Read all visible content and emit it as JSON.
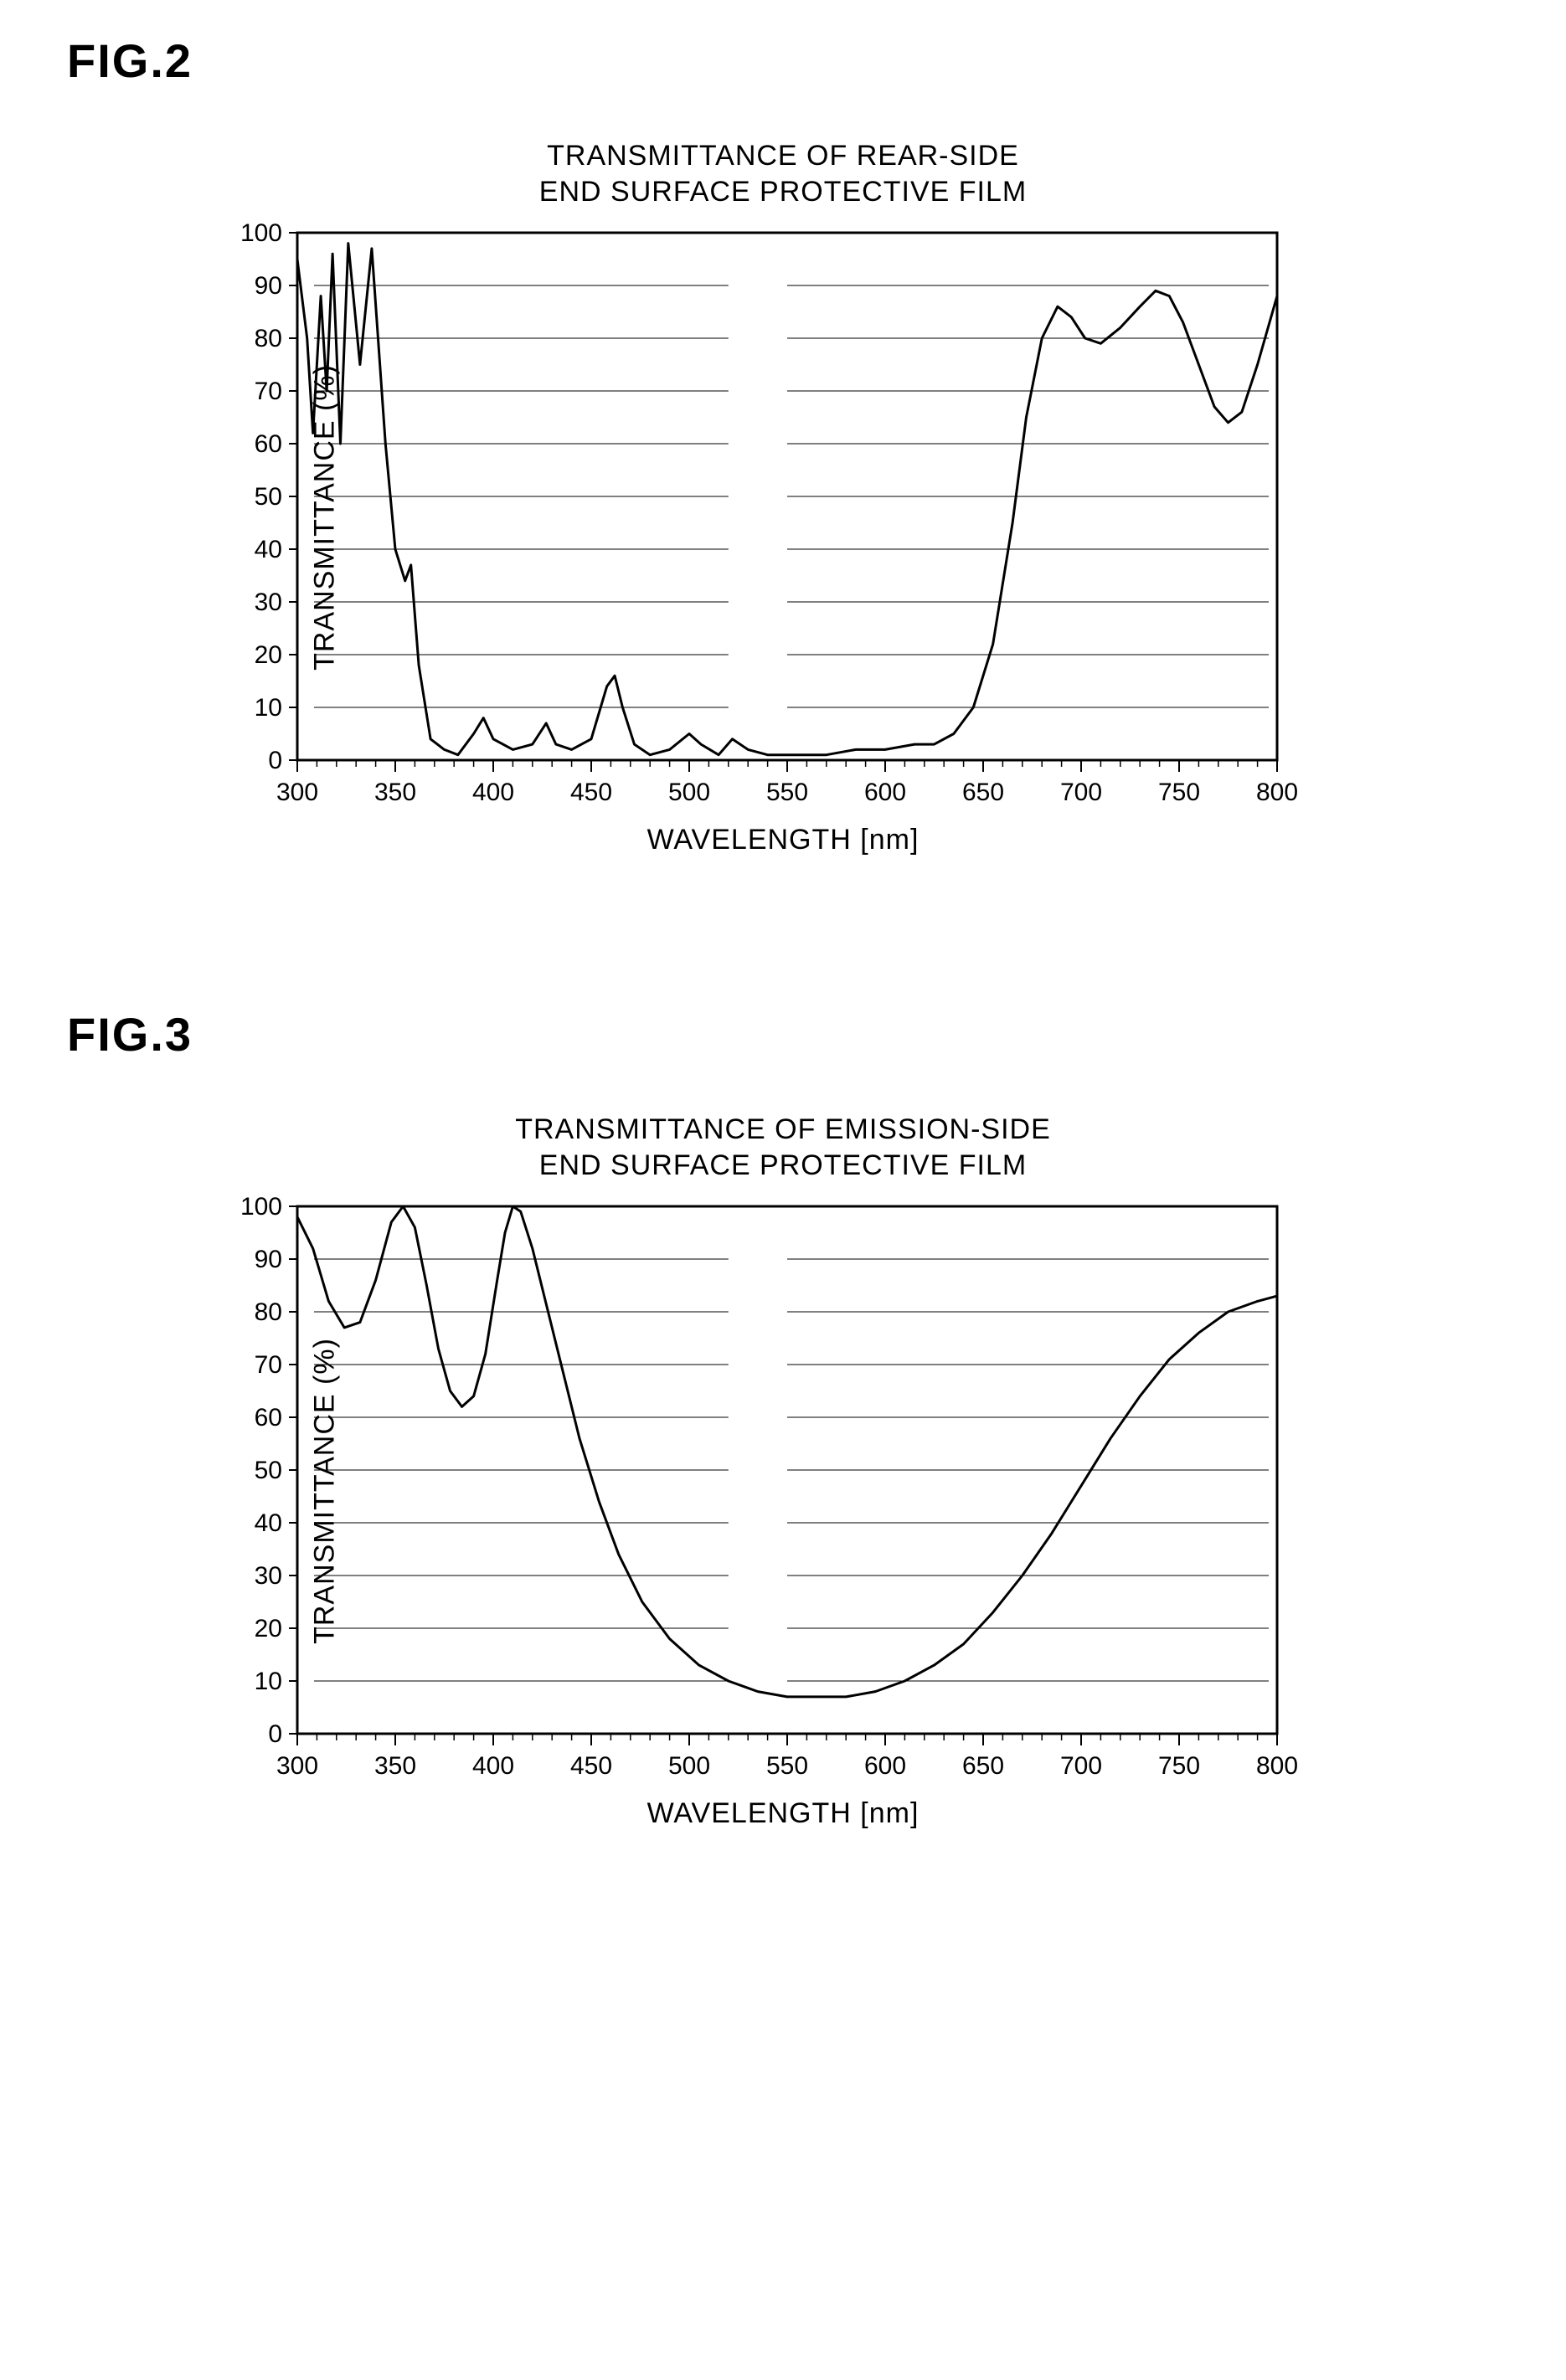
{
  "fig2": {
    "label": "FIG.2",
    "chart": {
      "type": "line",
      "title_line1": "TRANSMITTANCE OF REAR-SIDE",
      "title_line2": "END SURFACE PROTECTIVE FILM",
      "xlabel": "WAVELENGTH  [nm]",
      "ylabel": "TRANSMITTANCE (%)",
      "xlim": [
        300,
        800
      ],
      "ylim": [
        0,
        100
      ],
      "xtick_step": 50,
      "ytick_step": 10,
      "xtick_minor": 10,
      "xtick_labels": [
        "300",
        "350",
        "400",
        "450",
        "500",
        "550",
        "600",
        "650",
        "700",
        "750",
        "800"
      ],
      "ytick_labels": [
        "0",
        "10",
        "20",
        "30",
        "40",
        "50",
        "60",
        "70",
        "80",
        "90",
        "100"
      ],
      "line_color": "#000000",
      "line_width": 3,
      "grid_color": "#000000",
      "grid_width": 1,
      "axis_color": "#000000",
      "axis_width": 3,
      "background_color": "#ffffff",
      "tick_font_size": 30,
      "label_font_size": 34,
      "title_font_size": 34,
      "series": [
        [
          300,
          95
        ],
        [
          305,
          80
        ],
        [
          308,
          62
        ],
        [
          312,
          88
        ],
        [
          315,
          70
        ],
        [
          318,
          96
        ],
        [
          322,
          60
        ],
        [
          326,
          98
        ],
        [
          332,
          75
        ],
        [
          338,
          97
        ],
        [
          345,
          60
        ],
        [
          350,
          40
        ],
        [
          355,
          34
        ],
        [
          358,
          37
        ],
        [
          362,
          18
        ],
        [
          368,
          4
        ],
        [
          375,
          2
        ],
        [
          382,
          1
        ],
        [
          390,
          5
        ],
        [
          395,
          8
        ],
        [
          400,
          4
        ],
        [
          410,
          2
        ],
        [
          420,
          3
        ],
        [
          427,
          7
        ],
        [
          432,
          3
        ],
        [
          440,
          2
        ],
        [
          450,
          4
        ],
        [
          458,
          14
        ],
        [
          462,
          16
        ],
        [
          466,
          10
        ],
        [
          472,
          3
        ],
        [
          480,
          1
        ],
        [
          490,
          2
        ],
        [
          500,
          5
        ],
        [
          506,
          3
        ],
        [
          515,
          1
        ],
        [
          522,
          4
        ],
        [
          530,
          2
        ],
        [
          540,
          1
        ],
        [
          555,
          1
        ],
        [
          570,
          1
        ],
        [
          585,
          2
        ],
        [
          600,
          2
        ],
        [
          615,
          3
        ],
        [
          625,
          3
        ],
        [
          635,
          5
        ],
        [
          645,
          10
        ],
        [
          655,
          22
        ],
        [
          665,
          45
        ],
        [
          672,
          65
        ],
        [
          680,
          80
        ],
        [
          688,
          86
        ],
        [
          695,
          84
        ],
        [
          702,
          80
        ],
        [
          710,
          79
        ],
        [
          720,
          82
        ],
        [
          730,
          86
        ],
        [
          738,
          89
        ],
        [
          745,
          88
        ],
        [
          752,
          83
        ],
        [
          760,
          75
        ],
        [
          768,
          67
        ],
        [
          775,
          64
        ],
        [
          782,
          66
        ],
        [
          790,
          75
        ],
        [
          800,
          88
        ]
      ]
    }
  },
  "fig3": {
    "label": "FIG.3",
    "chart": {
      "type": "line",
      "title_line1": "TRANSMITTANCE OF EMISSION-SIDE",
      "title_line2": "END SURFACE PROTECTIVE FILM",
      "xlabel": "WAVELENGTH  [nm]",
      "ylabel": "TRANSMITTANCE (%)",
      "xlim": [
        300,
        800
      ],
      "ylim": [
        0,
        100
      ],
      "xtick_step": 50,
      "ytick_step": 10,
      "xtick_minor": 10,
      "xtick_labels": [
        "300",
        "350",
        "400",
        "450",
        "500",
        "550",
        "600",
        "650",
        "700",
        "750",
        "800"
      ],
      "ytick_labels": [
        "0",
        "10",
        "20",
        "30",
        "40",
        "50",
        "60",
        "70",
        "80",
        "90",
        "100"
      ],
      "line_color": "#000000",
      "line_width": 3,
      "grid_color": "#000000",
      "grid_width": 1,
      "axis_color": "#000000",
      "axis_width": 3,
      "background_color": "#ffffff",
      "tick_font_size": 30,
      "label_font_size": 34,
      "title_font_size": 34,
      "series": [
        [
          300,
          98
        ],
        [
          308,
          92
        ],
        [
          316,
          82
        ],
        [
          324,
          77
        ],
        [
          332,
          78
        ],
        [
          340,
          86
        ],
        [
          348,
          97
        ],
        [
          354,
          100
        ],
        [
          360,
          96
        ],
        [
          366,
          85
        ],
        [
          372,
          73
        ],
        [
          378,
          65
        ],
        [
          384,
          62
        ],
        [
          390,
          64
        ],
        [
          396,
          72
        ],
        [
          402,
          86
        ],
        [
          406,
          95
        ],
        [
          410,
          100
        ],
        [
          414,
          99
        ],
        [
          420,
          92
        ],
        [
          428,
          80
        ],
        [
          436,
          68
        ],
        [
          444,
          56
        ],
        [
          454,
          44
        ],
        [
          464,
          34
        ],
        [
          476,
          25
        ],
        [
          490,
          18
        ],
        [
          505,
          13
        ],
        [
          520,
          10
        ],
        [
          535,
          8
        ],
        [
          550,
          7
        ],
        [
          565,
          7
        ],
        [
          580,
          7
        ],
        [
          595,
          8
        ],
        [
          610,
          10
        ],
        [
          625,
          13
        ],
        [
          640,
          17
        ],
        [
          655,
          23
        ],
        [
          670,
          30
        ],
        [
          685,
          38
        ],
        [
          700,
          47
        ],
        [
          715,
          56
        ],
        [
          730,
          64
        ],
        [
          745,
          71
        ],
        [
          760,
          76
        ],
        [
          775,
          80
        ],
        [
          790,
          82
        ],
        [
          800,
          83
        ]
      ]
    }
  }
}
